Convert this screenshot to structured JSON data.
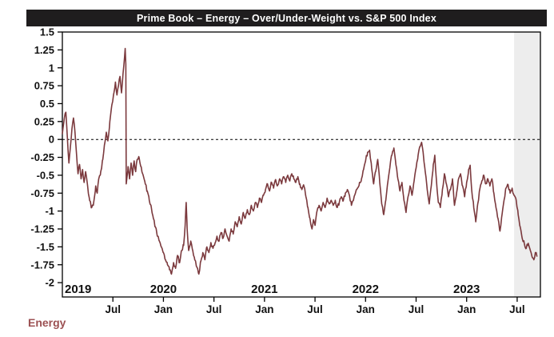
{
  "legend": {
    "label": "Energy"
  },
  "colors": {
    "title_bar_bg": "#1f1d1e",
    "title_text": "#ffffff",
    "series_line": "#7b393d",
    "legend_text": "#9c5153",
    "highlight_band": "#ededed",
    "axis": "#000000",
    "tick_label": "#111111",
    "zero_line": "#000000",
    "plot_bg": "#ffffff"
  },
  "chart_data": {
    "type": "line",
    "title": "Prime Book – Energy – Over/Under-Weight vs. S&P 500 Index",
    "xlabel": "",
    "ylabel": "",
    "x_domain": [
      2019.0,
      2023.73
    ],
    "y_domain": [
      -2.2,
      1.5
    ],
    "zero_line": 0,
    "grid": false,
    "legend_position": "bottom-left",
    "highlight_span": {
      "from": 2023.47,
      "to": 2023.73
    },
    "y_ticks": [
      {
        "v": 1.5,
        "label": "1.5"
      },
      {
        "v": 1.25,
        "label": "1.25"
      },
      {
        "v": 1,
        "label": "1"
      },
      {
        "v": 0.75,
        "label": "0.75"
      },
      {
        "v": 0.5,
        "label": "0.5"
      },
      {
        "v": 0.25,
        "label": "0.25"
      },
      {
        "v": 0,
        "label": "0"
      },
      {
        "v": -0.25,
        "label": "-0.25"
      },
      {
        "v": -0.5,
        "label": "-0.5"
      },
      {
        "v": -0.75,
        "label": "-0.75"
      },
      {
        "v": -1,
        "label": "-1"
      },
      {
        "v": -1.25,
        "label": "-1.25"
      },
      {
        "v": -1.5,
        "label": "-1.5"
      },
      {
        "v": -1.75,
        "label": "-1.75"
      },
      {
        "v": -2,
        "label": "-2"
      }
    ],
    "x_ticks": [
      {
        "t": 2019.5,
        "label": "Jul"
      },
      {
        "t": 2020.0,
        "label": "Jan"
      },
      {
        "t": 2020.5,
        "label": "Jul"
      },
      {
        "t": 2021.0,
        "label": "Jan"
      },
      {
        "t": 2021.5,
        "label": "Jul"
      },
      {
        "t": 2022.0,
        "label": "Jan"
      },
      {
        "t": 2022.5,
        "label": "Jul"
      },
      {
        "t": 2023.0,
        "label": "Jan"
      },
      {
        "t": 2023.5,
        "label": "Jul"
      }
    ],
    "year_labels": [
      {
        "t": 2019.0,
        "label": "2019",
        "align": "start"
      },
      {
        "t": 2020.0,
        "label": "2020",
        "align": "middle"
      },
      {
        "t": 2021.0,
        "label": "2021",
        "align": "middle"
      },
      {
        "t": 2022.0,
        "label": "2022",
        "align": "middle"
      },
      {
        "t": 2023.0,
        "label": "2023",
        "align": "middle"
      }
    ],
    "jitter": {
      "amplitude": 0.028,
      "step": 0.008,
      "seed": 42
    },
    "series": [
      {
        "name": "Energy",
        "points": [
          [
            2019.0,
            0.08
          ],
          [
            2019.02,
            0.3
          ],
          [
            2019.035,
            0.38
          ],
          [
            2019.05,
            0.02
          ],
          [
            2019.065,
            -0.33
          ],
          [
            2019.08,
            -0.1
          ],
          [
            2019.095,
            0.15
          ],
          [
            2019.11,
            0.3
          ],
          [
            2019.125,
            0.1
          ],
          [
            2019.14,
            -0.2
          ],
          [
            2019.155,
            -0.48
          ],
          [
            2019.17,
            -0.35
          ],
          [
            2019.185,
            -0.55
          ],
          [
            2019.2,
            -0.42
          ],
          [
            2019.215,
            -0.6
          ],
          [
            2019.23,
            -0.45
          ],
          [
            2019.25,
            -0.65
          ],
          [
            2019.27,
            -0.85
          ],
          [
            2019.29,
            -0.95
          ],
          [
            2019.31,
            -0.88
          ],
          [
            2019.33,
            -0.65
          ],
          [
            2019.345,
            -0.75
          ],
          [
            2019.36,
            -0.55
          ],
          [
            2019.38,
            -0.45
          ],
          [
            2019.4,
            -0.28
          ],
          [
            2019.42,
            -0.05
          ],
          [
            2019.435,
            0.1
          ],
          [
            2019.45,
            -0.02
          ],
          [
            2019.47,
            0.25
          ],
          [
            2019.49,
            0.48
          ],
          [
            2019.51,
            0.65
          ],
          [
            2019.525,
            0.8
          ],
          [
            2019.54,
            0.62
          ],
          [
            2019.555,
            0.75
          ],
          [
            2019.57,
            0.88
          ],
          [
            2019.585,
            0.65
          ],
          [
            2019.6,
            0.92
          ],
          [
            2019.615,
            1.15
          ],
          [
            2019.622,
            1.27
          ],
          [
            2019.628,
            1.05
          ],
          [
            2019.632,
            -0.62
          ],
          [
            2019.65,
            -0.38
          ],
          [
            2019.665,
            -0.55
          ],
          [
            2019.68,
            -0.33
          ],
          [
            2019.695,
            -0.5
          ],
          [
            2019.71,
            -0.3
          ],
          [
            2019.725,
            -0.45
          ],
          [
            2019.74,
            -0.28
          ],
          [
            2019.76,
            -0.26
          ],
          [
            2019.78,
            -0.38
          ],
          [
            2019.8,
            -0.5
          ],
          [
            2019.82,
            -0.62
          ],
          [
            2019.84,
            -0.72
          ],
          [
            2019.86,
            -0.85
          ],
          [
            2019.88,
            -0.95
          ],
          [
            2019.9,
            -1.1
          ],
          [
            2019.92,
            -1.22
          ],
          [
            2019.94,
            -1.35
          ],
          [
            2019.96,
            -1.42
          ],
          [
            2019.98,
            -1.5
          ],
          [
            2020.0,
            -1.58
          ],
          [
            2020.02,
            -1.68
          ],
          [
            2020.04,
            -1.75
          ],
          [
            2020.06,
            -1.82
          ],
          [
            2020.08,
            -1.88
          ],
          [
            2020.1,
            -1.72
          ],
          [
            2020.12,
            -1.8
          ],
          [
            2020.14,
            -1.62
          ],
          [
            2020.16,
            -1.72
          ],
          [
            2020.18,
            -1.55
          ],
          [
            2020.2,
            -1.48
          ],
          [
            2020.215,
            -1.2
          ],
          [
            2020.225,
            -0.88
          ],
          [
            2020.235,
            -1.25
          ],
          [
            2020.25,
            -1.55
          ],
          [
            2020.27,
            -1.42
          ],
          [
            2020.29,
            -1.55
          ],
          [
            2020.31,
            -1.68
          ],
          [
            2020.33,
            -1.78
          ],
          [
            2020.35,
            -1.88
          ],
          [
            2020.37,
            -1.7
          ],
          [
            2020.39,
            -1.58
          ],
          [
            2020.41,
            -1.68
          ],
          [
            2020.43,
            -1.5
          ],
          [
            2020.45,
            -1.58
          ],
          [
            2020.47,
            -1.44
          ],
          [
            2020.49,
            -1.52
          ],
          [
            2020.51,
            -1.45
          ],
          [
            2020.53,
            -1.35
          ],
          [
            2020.55,
            -1.42
          ],
          [
            2020.57,
            -1.3
          ],
          [
            2020.59,
            -1.38
          ],
          [
            2020.61,
            -1.25
          ],
          [
            2020.63,
            -1.35
          ],
          [
            2020.65,
            -1.42
          ],
          [
            2020.67,
            -1.25
          ],
          [
            2020.69,
            -1.32
          ],
          [
            2020.71,
            -1.15
          ],
          [
            2020.73,
            -1.22
          ],
          [
            2020.75,
            -1.08
          ],
          [
            2020.77,
            -1.18
          ],
          [
            2020.79,
            -1.02
          ],
          [
            2020.81,
            -1.1
          ],
          [
            2020.83,
            -0.98
          ],
          [
            2020.85,
            -1.05
          ],
          [
            2020.87,
            -0.92
          ],
          [
            2020.89,
            -1.0
          ],
          [
            2020.91,
            -0.88
          ],
          [
            2020.93,
            -0.95
          ],
          [
            2020.95,
            -0.82
          ],
          [
            2020.97,
            -0.88
          ],
          [
            2020.99,
            -0.78
          ],
          [
            2021.01,
            -0.7
          ],
          [
            2021.03,
            -0.62
          ],
          [
            2021.05,
            -0.72
          ],
          [
            2021.07,
            -0.6
          ],
          [
            2021.09,
            -0.68
          ],
          [
            2021.11,
            -0.56
          ],
          [
            2021.13,
            -0.64
          ],
          [
            2021.15,
            -0.55
          ],
          [
            2021.17,
            -0.62
          ],
          [
            2021.19,
            -0.52
          ],
          [
            2021.21,
            -0.6
          ],
          [
            2021.23,
            -0.5
          ],
          [
            2021.25,
            -0.58
          ],
          [
            2021.27,
            -0.48
          ],
          [
            2021.29,
            -0.55
          ],
          [
            2021.31,
            -0.6
          ],
          [
            2021.33,
            -0.52
          ],
          [
            2021.35,
            -0.62
          ],
          [
            2021.37,
            -0.7
          ],
          [
            2021.39,
            -0.65
          ],
          [
            2021.41,
            -0.8
          ],
          [
            2021.43,
            -0.95
          ],
          [
            2021.45,
            -1.1
          ],
          [
            2021.47,
            -1.25
          ],
          [
            2021.485,
            -1.12
          ],
          [
            2021.5,
            -1.2
          ],
          [
            2021.52,
            -1.0
          ],
          [
            2021.54,
            -0.92
          ],
          [
            2021.56,
            -1.0
          ],
          [
            2021.58,
            -0.88
          ],
          [
            2021.6,
            -0.95
          ],
          [
            2021.62,
            -0.82
          ],
          [
            2021.64,
            -0.9
          ],
          [
            2021.66,
            -0.85
          ],
          [
            2021.68,
            -0.92
          ],
          [
            2021.7,
            -0.85
          ],
          [
            2021.72,
            -0.95
          ],
          [
            2021.74,
            -0.88
          ],
          [
            2021.76,
            -0.8
          ],
          [
            2021.78,
            -0.85
          ],
          [
            2021.8,
            -0.75
          ],
          [
            2021.82,
            -0.7
          ],
          [
            2021.84,
            -0.78
          ],
          [
            2021.86,
            -0.92
          ],
          [
            2021.88,
            -0.85
          ],
          [
            2021.9,
            -0.75
          ],
          [
            2021.92,
            -0.68
          ],
          [
            2021.94,
            -0.6
          ],
          [
            2021.96,
            -0.55
          ],
          [
            2021.98,
            -0.42
          ],
          [
            2022.0,
            -0.3
          ],
          [
            2022.02,
            -0.18
          ],
          [
            2022.04,
            -0.15
          ],
          [
            2022.06,
            -0.4
          ],
          [
            2022.08,
            -0.62
          ],
          [
            2022.1,
            -0.45
          ],
          [
            2022.12,
            -0.28
          ],
          [
            2022.14,
            -0.6
          ],
          [
            2022.16,
            -0.9
          ],
          [
            2022.18,
            -1.05
          ],
          [
            2022.2,
            -0.85
          ],
          [
            2022.22,
            -0.6
          ],
          [
            2022.24,
            -0.4
          ],
          [
            2022.26,
            -0.22
          ],
          [
            2022.28,
            -0.12
          ],
          [
            2022.3,
            -0.35
          ],
          [
            2022.32,
            -0.55
          ],
          [
            2022.34,
            -0.72
          ],
          [
            2022.36,
            -0.6
          ],
          [
            2022.38,
            -0.85
          ],
          [
            2022.4,
            -1.02
          ],
          [
            2022.42,
            -0.8
          ],
          [
            2022.44,
            -0.65
          ],
          [
            2022.46,
            -0.78
          ],
          [
            2022.48,
            -0.58
          ],
          [
            2022.5,
            -0.4
          ],
          [
            2022.52,
            -0.22
          ],
          [
            2022.54,
            -0.1
          ],
          [
            2022.555,
            -0.04
          ],
          [
            2022.57,
            -0.18
          ],
          [
            2022.59,
            -0.45
          ],
          [
            2022.61,
            -0.7
          ],
          [
            2022.63,
            -0.9
          ],
          [
            2022.65,
            -0.65
          ],
          [
            2022.67,
            -0.35
          ],
          [
            2022.685,
            -0.22
          ],
          [
            2022.7,
            -0.55
          ],
          [
            2022.72,
            -0.88
          ],
          [
            2022.74,
            -0.95
          ],
          [
            2022.76,
            -0.7
          ],
          [
            2022.78,
            -0.48
          ],
          [
            2022.8,
            -0.62
          ],
          [
            2022.82,
            -0.8
          ],
          [
            2022.84,
            -0.7
          ],
          [
            2022.86,
            -0.55
          ],
          [
            2022.88,
            -0.92
          ],
          [
            2022.9,
            -0.75
          ],
          [
            2022.92,
            -0.55
          ],
          [
            2022.94,
            -0.48
          ],
          [
            2022.96,
            -0.65
          ],
          [
            2022.98,
            -0.8
          ],
          [
            2023.0,
            -0.6
          ],
          [
            2023.02,
            -0.42
          ],
          [
            2023.035,
            -0.36
          ],
          [
            2023.05,
            -0.7
          ],
          [
            2023.07,
            -0.95
          ],
          [
            2023.09,
            -1.15
          ],
          [
            2023.11,
            -0.9
          ],
          [
            2023.13,
            -0.7
          ],
          [
            2023.15,
            -0.58
          ],
          [
            2023.17,
            -0.5
          ],
          [
            2023.19,
            -0.62
          ],
          [
            2023.21,
            -0.55
          ],
          [
            2023.23,
            -0.65
          ],
          [
            2023.25,
            -0.55
          ],
          [
            2023.27,
            -0.75
          ],
          [
            2023.29,
            -0.95
          ],
          [
            2023.31,
            -1.1
          ],
          [
            2023.33,
            -1.28
          ],
          [
            2023.35,
            -1.05
          ],
          [
            2023.37,
            -0.85
          ],
          [
            2023.39,
            -0.68
          ],
          [
            2023.41,
            -0.63
          ],
          [
            2023.43,
            -0.75
          ],
          [
            2023.45,
            -0.68
          ],
          [
            2023.47,
            -0.78
          ],
          [
            2023.49,
            -0.85
          ],
          [
            2023.51,
            -1.05
          ],
          [
            2023.53,
            -1.22
          ],
          [
            2023.55,
            -1.38
          ],
          [
            2023.57,
            -1.45
          ],
          [
            2023.59,
            -1.52
          ],
          [
            2023.61,
            -1.45
          ],
          [
            2023.63,
            -1.55
          ],
          [
            2023.65,
            -1.65
          ],
          [
            2023.665,
            -1.68
          ],
          [
            2023.68,
            -1.58
          ],
          [
            2023.695,
            -1.63
          ]
        ]
      }
    ]
  }
}
